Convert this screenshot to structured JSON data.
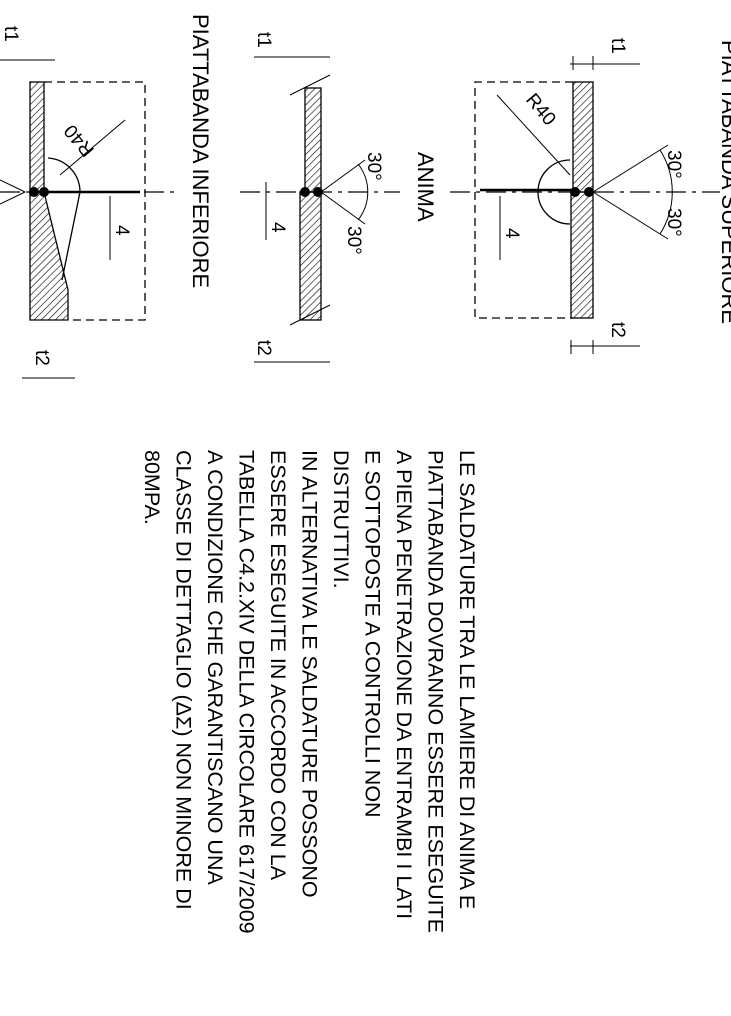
{
  "titles": {
    "superiore": "PIATTABANDA SUPERIORE",
    "anima": "ANIMA",
    "inferiore": "PIATTABANDA INFERIORE"
  },
  "labels": {
    "t1": "t1",
    "t2": "t2",
    "r40": "R40",
    "gap": "4",
    "angle_a": "30°",
    "angle_b": "30°"
  },
  "note": {
    "lines": [
      "LE SALDATURE TRA LE LAMIERE DI ANIMA E",
      "PIATTABANDA DOVRANNO ESSERE ESEGUITE",
      "A PIENA PENETRAZIONE DA ENTRAMBI I LATI",
      "E SOTTOPOSTE A CONTROLLI NON",
      "DISTRUTTIVI.",
      "IN ALTERNATIVA LE SALDATURE POSSONO",
      "ESSERE ESEGUITE IN ACCORDO CON LA",
      "TABELLA C4.2.XIV DELLA CIRCOLARE 617/2009",
      "A CONDIZIONE CHE GARANTISCANO UNA",
      "CLASSE DI DETTAGLIO (ΔΣ) NON MINORE DI",
      "80MPA."
    ]
  }
}
